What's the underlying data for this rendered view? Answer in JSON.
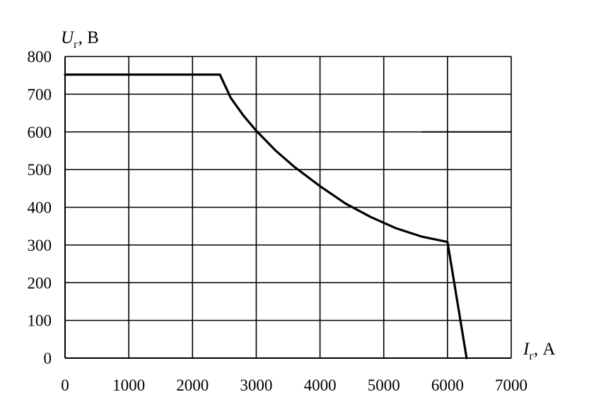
{
  "chart_data": {
    "type": "line",
    "xlabel": {
      "symbol": "I",
      "subscript": "г",
      "unit": ", А"
    },
    "ylabel": {
      "symbol": "U",
      "subscript": "г",
      "unit": ", В"
    },
    "xlim": [
      0,
      7000
    ],
    "ylim": [
      0,
      800
    ],
    "x_ticks": [
      "0",
      "1000",
      "2000",
      "3000",
      "4000",
      "5000",
      "6000",
      "7000"
    ],
    "y_ticks": [
      "0",
      "100",
      "200",
      "300",
      "400",
      "500",
      "600",
      "700",
      "800"
    ],
    "grid": true,
    "series": [
      {
        "x": [
          0,
          2430,
          2600,
          2800,
          3000,
          3300,
          3600,
          4000,
          4400,
          4800,
          5200,
          5600,
          6000,
          6300
        ],
        "y": [
          752,
          752,
          690,
          643,
          603,
          551,
          507,
          456,
          410,
          374,
          344,
          322,
          308,
          0
        ]
      }
    ],
    "annotations": [
      {
        "type": "hline",
        "y": 600,
        "x_from": 5600,
        "x_to": 7000
      }
    ]
  }
}
